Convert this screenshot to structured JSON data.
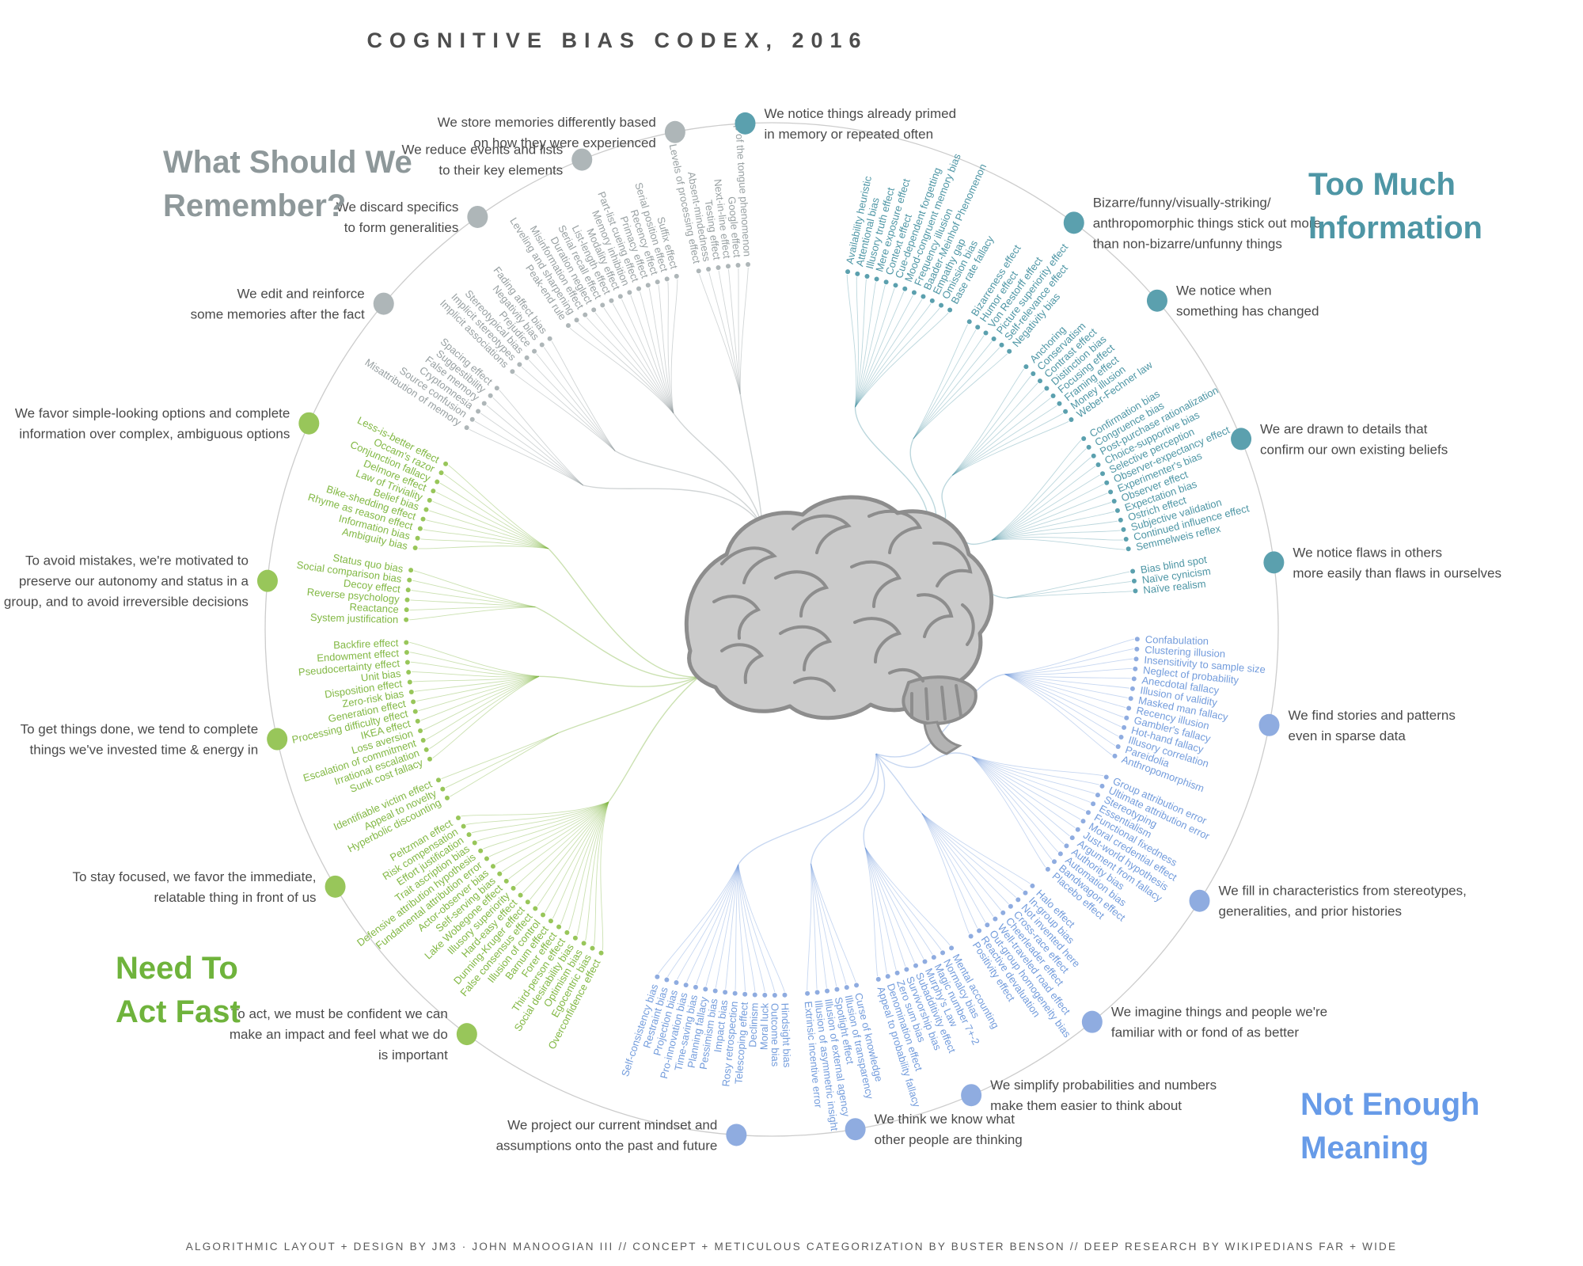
{
  "title": "COGNITIVE BIAS CODEX, 2016",
  "footer": "ALGORITHMIC LAYOUT + DESIGN BY JM3 · JOHN MANOOGIAN III // CONCEPT + METICULOUS CATEGORIZATION BY BUSTER BENSON // DEEP RESEARCH BY WIKIPEDIANS FAR + WIDE",
  "center_icon": "brain",
  "palette": {
    "background": "#ffffff",
    "title": "#4d4d4d",
    "annotation_text": "#4a4a4a",
    "arc": "#cccccc",
    "brain_fill": "#cbcbcb",
    "brain_shadow": "#b3b3b3",
    "brain_stroke": "#8d8d8d"
  },
  "quadrants": [
    {
      "id": "too-much-information",
      "title": "Too Much\nInformation",
      "heading_color": "#4E96A5",
      "label_color": "#4E96A5",
      "dot_color": "#5BA0AE",
      "line_color": "rgba(78,150,165,0.38)",
      "groups": [
        {
          "annotation": "We notice things already primed\nin memory or repeated often",
          "biases": [
            "Availability heuristic",
            "Attentional bias",
            "Illusory truth effect",
            "Mere exposure effect",
            "Context effect",
            "Cue-dependent forgetting",
            "Mood-congruent memory bias",
            "Frequency illusion",
            "Baader-Meinhof Phenomenon",
            "Empathy gap",
            "Omission bias",
            "Base rate fallacy"
          ]
        },
        {
          "annotation": "Bizarre/funny/visually-striking/\nanthropomorphic things stick out more\nthan non-bizarre/unfunny things",
          "biases": [
            "Bizarreness effect",
            "Humor effect",
            "Von Restorff effect",
            "Picture superiority effect",
            "Self-relevance effect",
            "Negativity bias"
          ]
        },
        {
          "annotation": "We notice when\nsomething has changed",
          "biases": [
            "Anchoring",
            "Conservatism",
            "Contrast effect",
            "Distinction bias",
            "Focusing effect",
            "Framing effect",
            "Money illusion",
            "Weber-Fechner law"
          ]
        },
        {
          "annotation": "We are drawn to details that\nconfirm our own existing beliefs",
          "biases": [
            "Confirmation bias",
            "Congruence bias",
            "Post-purchase rationalization",
            "Choice-supportive bias",
            "Selective perception",
            "Observer-expectancy effect",
            "Experimenter's bias",
            "Observer effect",
            "Expectation bias",
            "Ostrich effect",
            "Subjective validation",
            "Continued influence effect",
            "Semmelweis reflex"
          ]
        },
        {
          "annotation": "We notice flaws in others\nmore easily than flaws in ourselves",
          "biases": [
            "Bias blind spot",
            "Naïve cynicism",
            "Naïve realism"
          ]
        }
      ]
    },
    {
      "id": "not-enough-meaning",
      "title": "Not Enough\nMeaning",
      "heading_color": "#679BE8",
      "label_color": "#739CDC",
      "dot_color": "#8FACE0",
      "line_color": "rgba(115,156,220,0.4)",
      "groups": [
        {
          "annotation": "We find stories and patterns\neven in sparse data",
          "biases": [
            "Confabulation",
            "Clustering illusion",
            "Insensitivity to sample size",
            "Neglect of probability",
            "Anecdotal fallacy",
            "Illusion of validity",
            "Masked man fallacy",
            "Recency illusion",
            "Gambler's fallacy",
            "Hot-hand fallacy",
            "Illusory correlation",
            "Pareidolia",
            "Anthropomorphism"
          ]
        },
        {
          "annotation": "We fill in characteristics from stereotypes,\ngeneralities, and prior histories",
          "biases": [
            "Group attribution error",
            "Ultimate attribution error",
            "Stereotyping",
            "Essentialism",
            "Functional fixedness",
            "Moral credential effect",
            "Just-world hypothesis",
            "Argument from fallacy",
            "Authority bias",
            "Automation bias",
            "Bandwagon effect",
            "Placebo effect"
          ]
        },
        {
          "annotation": "We imagine things and people we're\nfamiliar with or fond of as better",
          "biases": [
            "Halo effect",
            "In-group bias",
            "Not invented here",
            "Cross-race effect",
            "Cheerleader effect",
            "Well-traveled road effect",
            "Out-group homogeneity bias",
            "Reactive devaluation",
            "Positivity effect"
          ]
        },
        {
          "annotation": "We simplify probabilities and numbers\nmake them easier to think about",
          "biases": [
            "Mental accounting",
            "Normalcy bias",
            "Magic number 7+-2",
            "Murphy's Law",
            "Subadditivity effect",
            "Survivorship bias",
            "Zero sum bias",
            "Denomination effect",
            "Appeal to probability fallacy"
          ]
        },
        {
          "annotation": "We think we know what\nother people are thinking",
          "biases": [
            "Curse of knowledge",
            "Illusion of transparency",
            "Spotlight effect",
            "Illusion of external agency",
            "Illusion of asymmetric insight",
            "Extrinsic incentive error"
          ]
        },
        {
          "annotation": "We project our current mindset and\nassumptions onto the past and future",
          "biases": [
            "Hindsight bias",
            "Outcome bias",
            "Moral luck",
            "Declinism",
            "Telescoping effect",
            "Rosy retrospection",
            "Impact bias",
            "Pessimism bias",
            "Planning fallacy",
            "Time-saving bias",
            "Pro-innovation bias",
            "Projection bias",
            "Restraint bias",
            "Self-consistency bias"
          ]
        }
      ]
    },
    {
      "id": "need-to-act-fast",
      "title": "Need To\nAct Fast",
      "heading_color": "#6FB33C",
      "label_color": "#82B844",
      "dot_color": "#98C65A",
      "line_color": "rgba(130,184,68,0.42)",
      "groups": [
        {
          "annotation": "To act, we must be confident we can\nmake an impact and feel what we do\nis important",
          "biases": [
            "Overconfidence effect",
            "Egocentric bias",
            "Optimism bias",
            "Social desirability bias",
            "Third-person effect",
            "Forer effect",
            "Barnum effect",
            "Illusion of control",
            "False consensus effect",
            "Dunning-Kruger effect",
            "Hard-easy effect",
            "Illusory superiority",
            "Lake Wobegone effect",
            "Self-serving bias",
            "Actor-observer bias",
            "Fundamental attribution error",
            "Defensive attribution hypothesis",
            "Trait ascription bias",
            "Effort justification",
            "Risk compensation",
            "Peltzman effect"
          ]
        },
        {
          "annotation": "To stay focused, we favor the immediate,\nrelatable thing in front of us",
          "biases": [
            "Hyperbolic discounting",
            "Appeal to novelty",
            "Identifiable victim effect"
          ]
        },
        {
          "annotation": "To get things done, we tend to complete\nthings we've invested time & energy in",
          "biases": [
            "Sunk cost fallacy",
            "Irrational escalation",
            "Escalation of commitment",
            "Loss aversion",
            "IKEA effect",
            "Processing difficulty effect",
            "Generation effect",
            "Zero-risk bias",
            "Disposition effect",
            "Unit bias",
            "Pseudocertainty effect",
            "Endowment effect",
            "Backfire effect"
          ]
        },
        {
          "annotation": "To avoid mistakes, we're motivated to\npreserve our autonomy and status in a\ngroup, and to avoid irreversible decisions",
          "biases": [
            "System justification",
            "Reactance",
            "Reverse psychology",
            "Decoy effect",
            "Social comparison bias",
            "Status quo bias"
          ]
        },
        {
          "annotation": "We favor simple-looking options and complete\ninformation over complex, ambiguous options",
          "biases": [
            "Ambiguity bias",
            "Information bias",
            "Rhyme as reason effect",
            "Bike-shedding effect",
            "Belief bias",
            "Law of Triviality",
            "Delmore effect",
            "Conjunction fallacy",
            "Occam's razor",
            "Less-is-better effect"
          ]
        }
      ]
    },
    {
      "id": "what-should-we-remember",
      "title": "What Should We\nRemember?",
      "heading_color": "#8E989A",
      "label_color": "#98A0A2",
      "dot_color": "#AEB6B8",
      "line_color": "rgba(145,155,157,0.42)",
      "groups": [
        {
          "annotation": "We edit and reinforce\nsome memories after the fact",
          "biases": [
            "Misattribution of memory",
            "Source confusion",
            "Cryptomnesia",
            "False memory",
            "Suggestibility",
            "Spacing effect"
          ]
        },
        {
          "annotation": "We discard specifics\nto form generalities",
          "biases": [
            "Implicit associations",
            "Implicit stereotypes",
            "Stereotypical bias",
            "Prejudice",
            "Negativity bias",
            "Fading affect bias"
          ]
        },
        {
          "annotation": "We reduce events and lists\nto their key elements",
          "biases": [
            "Peak-end rule",
            "Leveling and sharpening",
            "Misinformation effect",
            "Duration neglect",
            "Serial recall effect",
            "List-length effect",
            "Modality effect",
            "Memory inhibition",
            "Part-list cueing effect",
            "Primacy effect",
            "Recency effect",
            "Serial position effect",
            "Suffix effect"
          ]
        },
        {
          "annotation": "We store memories differently based\non how they were experienced",
          "biases": [
            "Levels of processing effect",
            "Absent-mindedness",
            "Testing effect",
            "Next-in-line effect",
            "Google effect",
            "Tip of the tongue phenomenon"
          ]
        }
      ]
    }
  ]
}
